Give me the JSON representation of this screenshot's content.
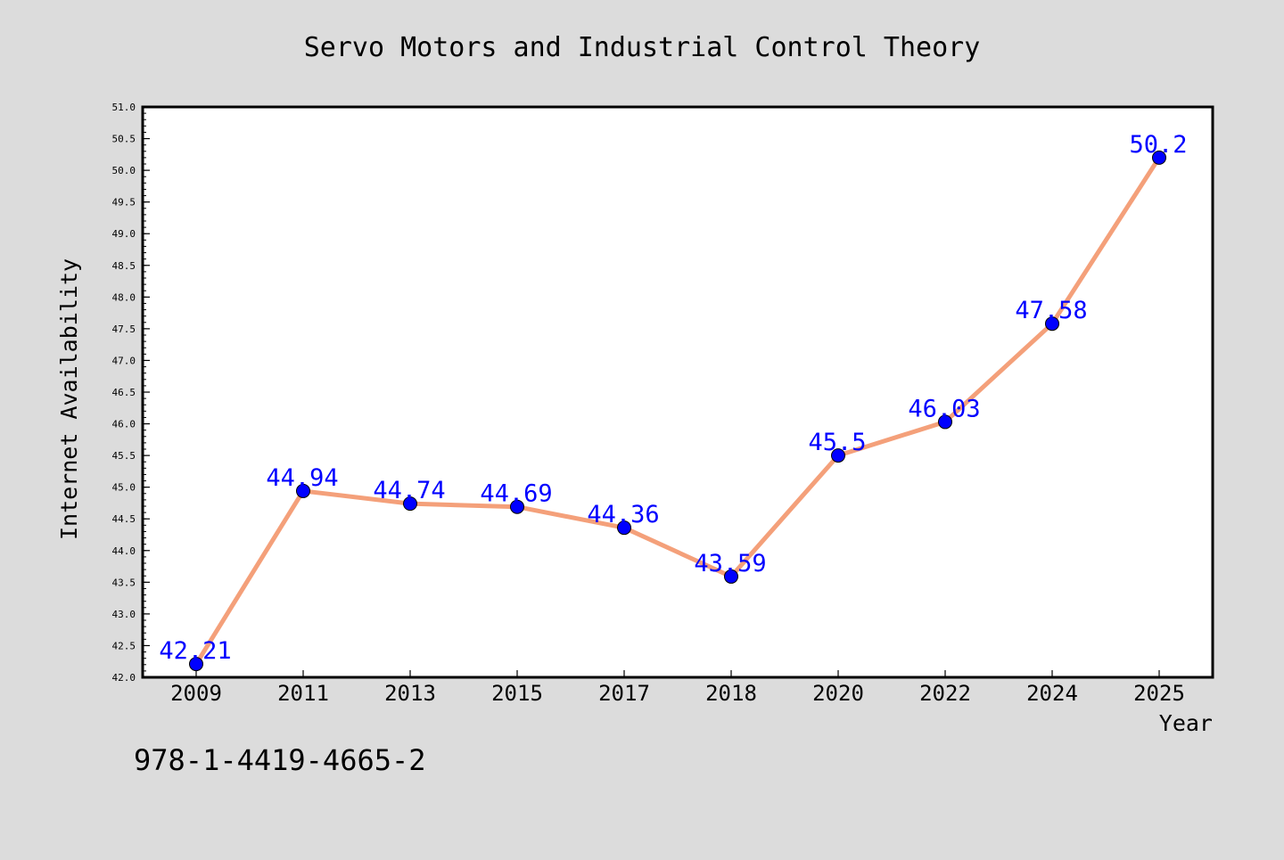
{
  "isbn": "978-1-4419-4665-2",
  "chart_data": {
    "type": "line",
    "title": "Servo Motors and Industrial Control Theory",
    "xlabel": "Year",
    "ylabel": "Internet Availability",
    "categories": [
      "2009",
      "2011",
      "2013",
      "2015",
      "2017",
      "2018",
      "2020",
      "2022",
      "2024",
      "2025"
    ],
    "series": [
      {
        "values": [
          42.21,
          44.94,
          44.74,
          44.69,
          44.36,
          43.59,
          45.5,
          46.03,
          47.58,
          50.2
        ]
      }
    ],
    "data_labels": [
      "42.21",
      "44.94",
      "44.74",
      "44.69",
      "44.36",
      "43.59",
      "45.5",
      "46.03",
      "47.58",
      "50.2"
    ],
    "ylim": [
      42.0,
      51.0
    ],
    "yticks": [
      "42.0",
      "42.5",
      "43.0",
      "43.5",
      "44.0",
      "44.5",
      "45.0",
      "45.5",
      "46.0",
      "46.5",
      "47.0",
      "47.5",
      "48.0",
      "48.5",
      "49.0",
      "49.5",
      "50.0",
      "50.5",
      "51.0"
    ],
    "grid": false,
    "colors": {
      "line": "#f4a07a",
      "marker": "#0000ff",
      "data_label": "#0000ff",
      "background": "#dcdcdc",
      "plot_background": "#ffffff"
    }
  }
}
